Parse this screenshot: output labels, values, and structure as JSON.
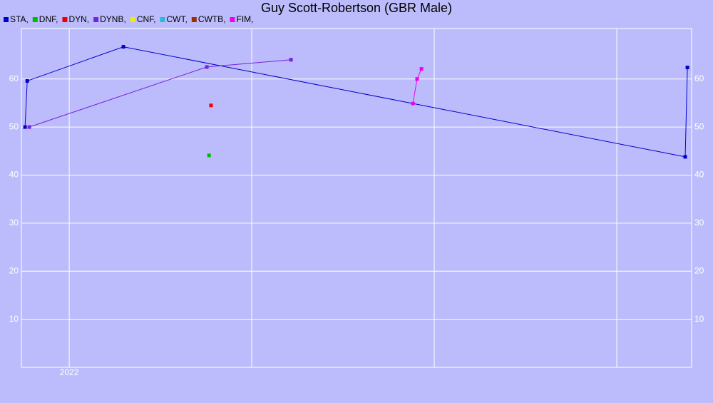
{
  "chart_data": {
    "type": "line",
    "title": "Guy Scott-Robertson (GBR Male)",
    "series": [
      {
        "name": "STA,",
        "color": "#0000cc",
        "x": [
          2021.758,
          2021.77,
          2022.297,
          2025.375,
          2025.387
        ],
        "values": [
          50,
          59.6,
          66.7,
          43.8,
          62.4
        ]
      },
      {
        "name": "DNF,",
        "color": "#00bb00",
        "x": [
          2022.766
        ],
        "values": [
          44.1
        ]
      },
      {
        "name": "DYN,",
        "color": "#ee0000",
        "x": [
          2022.777
        ],
        "values": [
          54.5
        ]
      },
      {
        "name": "DYNB,",
        "color": "#7722dd",
        "x": [
          2021.781,
          2022.754,
          2023.215
        ],
        "values": [
          50,
          62.5,
          64.0
        ]
      },
      {
        "name": "CNF,",
        "color": "#eeee00",
        "x": [],
        "values": []
      },
      {
        "name": "CWT,",
        "color": "#22bbdd",
        "x": [],
        "values": []
      },
      {
        "name": "CWTB,",
        "color": "#993300",
        "x": [],
        "values": []
      },
      {
        "name": "FIM,",
        "color": "#ee00ee",
        "x": [
          2023.883,
          2023.906,
          2023.93
        ],
        "values": [
          54.9,
          60.0,
          62.1
        ]
      }
    ],
    "xlim": [
      2021.738,
      2025.41
    ],
    "xticks": [
      {
        "value": 2022,
        "label": "2022"
      },
      {
        "value": 2023,
        "label": null
      },
      {
        "value": 2024,
        "label": null
      },
      {
        "value": 2025,
        "label": null
      }
    ],
    "ylim": [
      0,
      70.5
    ],
    "yticks": [
      10,
      20,
      30,
      40,
      50,
      60
    ],
    "y2lim": [
      0,
      70.5
    ],
    "y2ticks": [
      10,
      20,
      30,
      40,
      50,
      60
    ],
    "grid": true
  }
}
